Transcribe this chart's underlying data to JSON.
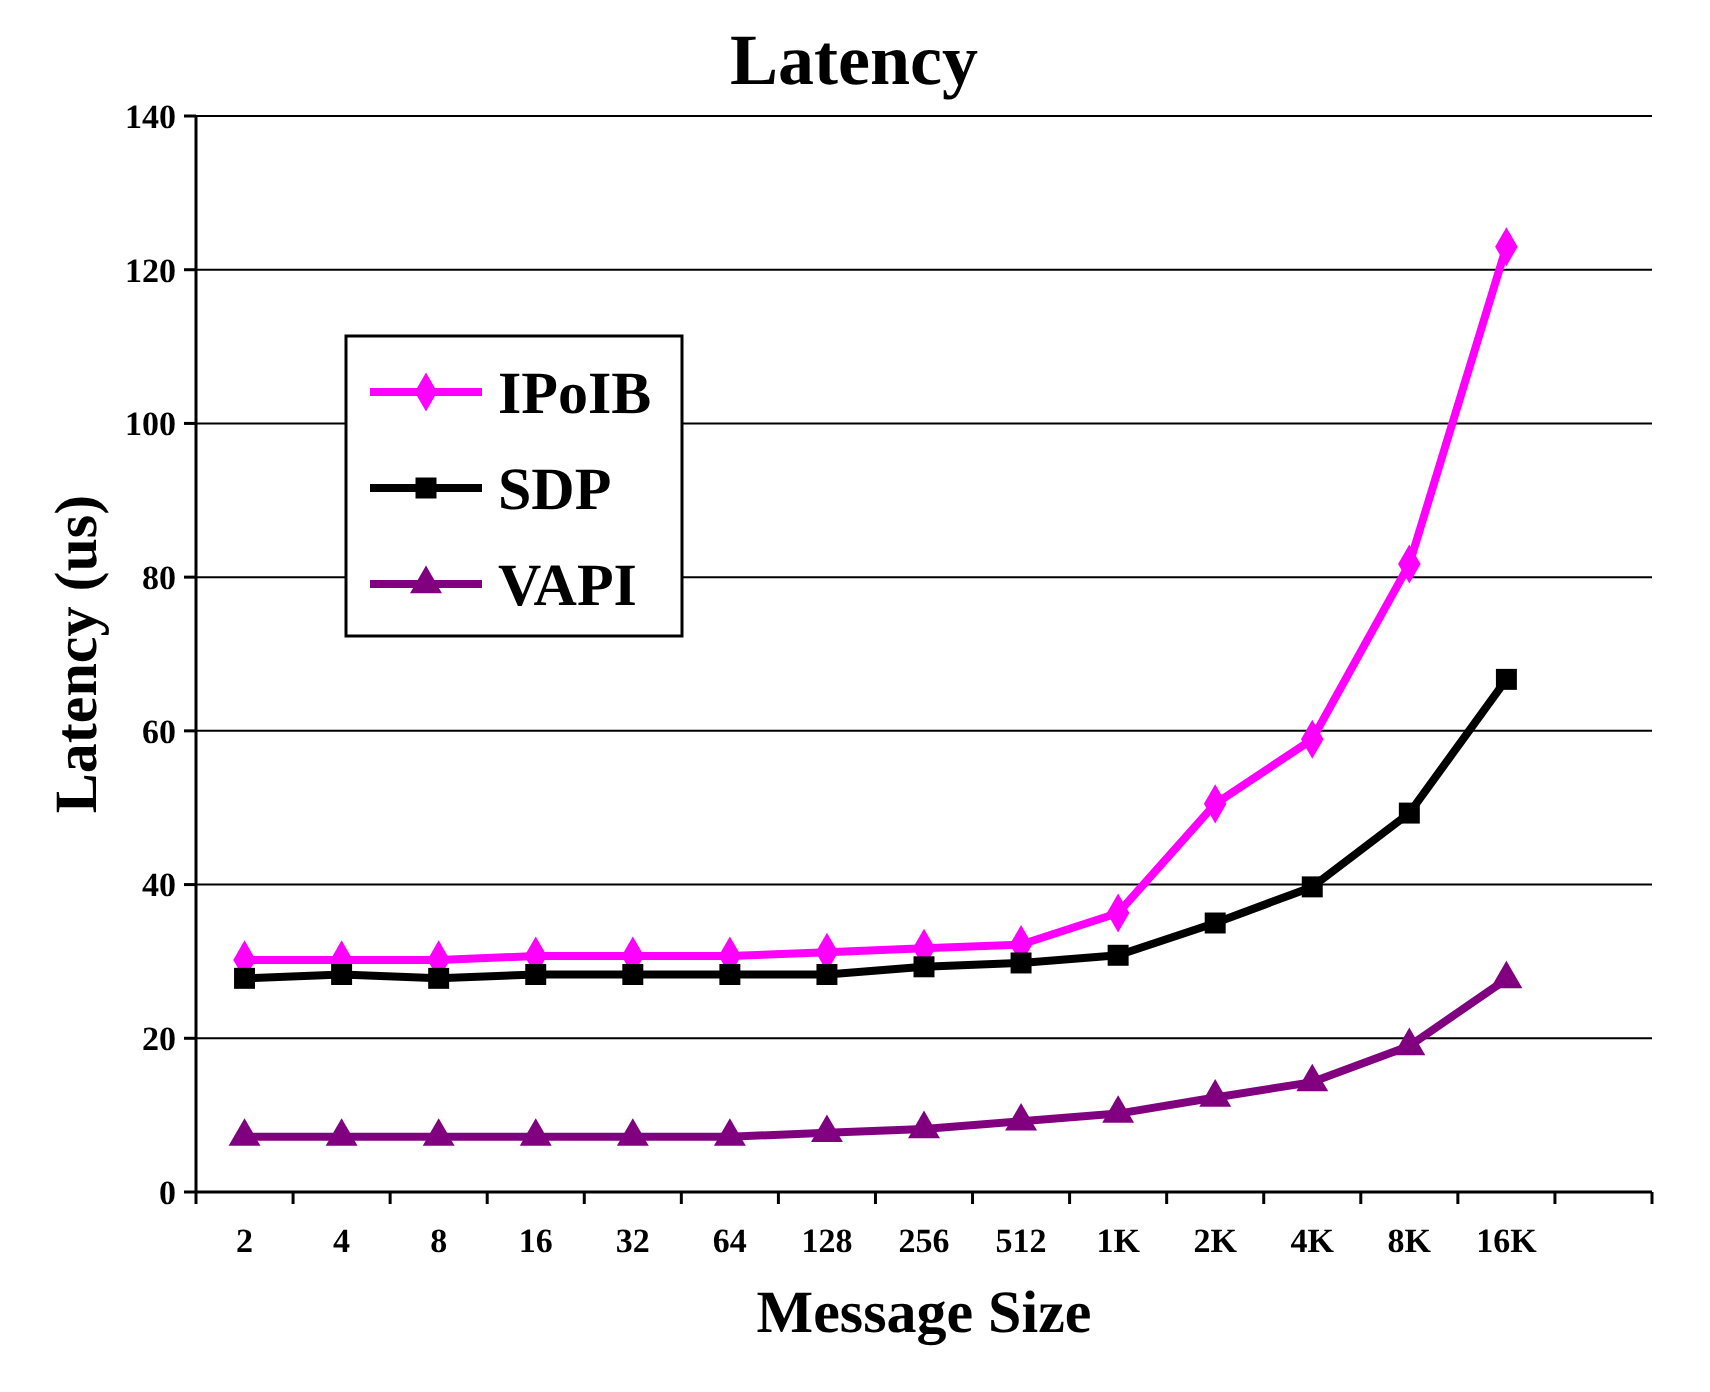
{
  "chart_data": {
    "type": "line",
    "title": "Latency",
    "xlabel": "Message Size",
    "ylabel": "Latency (us)",
    "categories": [
      "2",
      "4",
      "8",
      "16",
      "32",
      "64",
      "128",
      "256",
      "512",
      "1K",
      "2K",
      "4K",
      "8K",
      "16K",
      null
    ],
    "series": [
      {
        "name": "IPoIB",
        "color": "#ff00ff",
        "marker": "diamond",
        "values": [
          30.2,
          30.2,
          30.2,
          30.7,
          30.7,
          30.7,
          31.2,
          31.7,
          32.2,
          36.3,
          50.5,
          58.9,
          81.7,
          123,
          null
        ]
      },
      {
        "name": "SDP",
        "color": "#000000",
        "marker": "square",
        "values": [
          27.8,
          28.3,
          27.8,
          28.3,
          28.3,
          28.3,
          28.3,
          29.3,
          29.8,
          30.8,
          35,
          39.7,
          49.3,
          66.7,
          null
        ]
      },
      {
        "name": "VAPI",
        "color": "#800080",
        "marker": "triangle",
        "values": [
          7.2,
          7.2,
          7.2,
          7.2,
          7.2,
          7.2,
          7.7,
          8.2,
          9.2,
          10.2,
          12.3,
          14.3,
          19,
          27.7,
          null
        ]
      }
    ],
    "ylim": [
      0,
      140
    ],
    "yticks": [
      0,
      20,
      40,
      60,
      80,
      100,
      120,
      140
    ],
    "grid": "y",
    "legend": "left",
    "line_style": "solid"
  }
}
